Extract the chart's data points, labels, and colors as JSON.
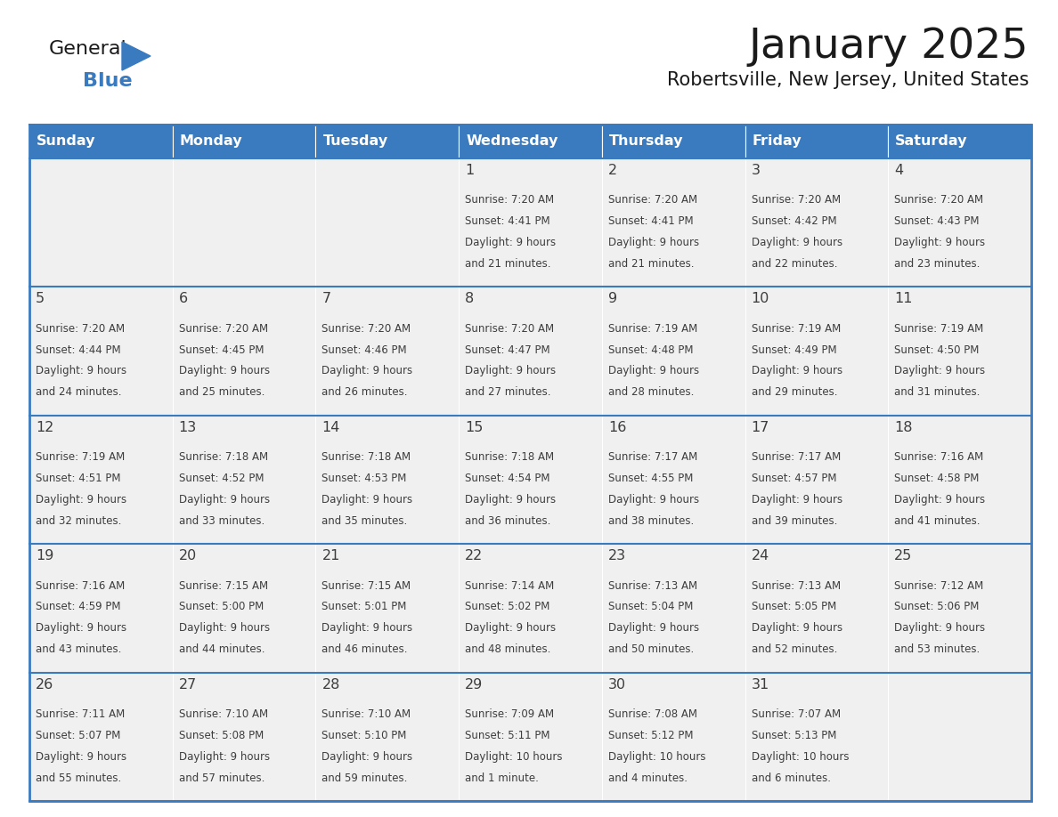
{
  "title": "January 2025",
  "subtitle": "Robertsville, New Jersey, United States",
  "header_bg": "#3a7abf",
  "header_text_color": "#ffffff",
  "cell_bg": "#f0f0f0",
  "day_names": [
    "Sunday",
    "Monday",
    "Tuesday",
    "Wednesday",
    "Thursday",
    "Friday",
    "Saturday"
  ],
  "days": [
    {
      "day": 1,
      "col": 3,
      "row": 0,
      "sunrise": "7:20 AM",
      "sunset": "4:41 PM",
      "daylight_l1": "Daylight: 9 hours",
      "daylight_l2": "and 21 minutes."
    },
    {
      "day": 2,
      "col": 4,
      "row": 0,
      "sunrise": "7:20 AM",
      "sunset": "4:41 PM",
      "daylight_l1": "Daylight: 9 hours",
      "daylight_l2": "and 21 minutes."
    },
    {
      "day": 3,
      "col": 5,
      "row": 0,
      "sunrise": "7:20 AM",
      "sunset": "4:42 PM",
      "daylight_l1": "Daylight: 9 hours",
      "daylight_l2": "and 22 minutes."
    },
    {
      "day": 4,
      "col": 6,
      "row": 0,
      "sunrise": "7:20 AM",
      "sunset": "4:43 PM",
      "daylight_l1": "Daylight: 9 hours",
      "daylight_l2": "and 23 minutes."
    },
    {
      "day": 5,
      "col": 0,
      "row": 1,
      "sunrise": "7:20 AM",
      "sunset": "4:44 PM",
      "daylight_l1": "Daylight: 9 hours",
      "daylight_l2": "and 24 minutes."
    },
    {
      "day": 6,
      "col": 1,
      "row": 1,
      "sunrise": "7:20 AM",
      "sunset": "4:45 PM",
      "daylight_l1": "Daylight: 9 hours",
      "daylight_l2": "and 25 minutes."
    },
    {
      "day": 7,
      "col": 2,
      "row": 1,
      "sunrise": "7:20 AM",
      "sunset": "4:46 PM",
      "daylight_l1": "Daylight: 9 hours",
      "daylight_l2": "and 26 minutes."
    },
    {
      "day": 8,
      "col": 3,
      "row": 1,
      "sunrise": "7:20 AM",
      "sunset": "4:47 PM",
      "daylight_l1": "Daylight: 9 hours",
      "daylight_l2": "and 27 minutes."
    },
    {
      "day": 9,
      "col": 4,
      "row": 1,
      "sunrise": "7:19 AM",
      "sunset": "4:48 PM",
      "daylight_l1": "Daylight: 9 hours",
      "daylight_l2": "and 28 minutes."
    },
    {
      "day": 10,
      "col": 5,
      "row": 1,
      "sunrise": "7:19 AM",
      "sunset": "4:49 PM",
      "daylight_l1": "Daylight: 9 hours",
      "daylight_l2": "and 29 minutes."
    },
    {
      "day": 11,
      "col": 6,
      "row": 1,
      "sunrise": "7:19 AM",
      "sunset": "4:50 PM",
      "daylight_l1": "Daylight: 9 hours",
      "daylight_l2": "and 31 minutes."
    },
    {
      "day": 12,
      "col": 0,
      "row": 2,
      "sunrise": "7:19 AM",
      "sunset": "4:51 PM",
      "daylight_l1": "Daylight: 9 hours",
      "daylight_l2": "and 32 minutes."
    },
    {
      "day": 13,
      "col": 1,
      "row": 2,
      "sunrise": "7:18 AM",
      "sunset": "4:52 PM",
      "daylight_l1": "Daylight: 9 hours",
      "daylight_l2": "and 33 minutes."
    },
    {
      "day": 14,
      "col": 2,
      "row": 2,
      "sunrise": "7:18 AM",
      "sunset": "4:53 PM",
      "daylight_l1": "Daylight: 9 hours",
      "daylight_l2": "and 35 minutes."
    },
    {
      "day": 15,
      "col": 3,
      "row": 2,
      "sunrise": "7:18 AM",
      "sunset": "4:54 PM",
      "daylight_l1": "Daylight: 9 hours",
      "daylight_l2": "and 36 minutes."
    },
    {
      "day": 16,
      "col": 4,
      "row": 2,
      "sunrise": "7:17 AM",
      "sunset": "4:55 PM",
      "daylight_l1": "Daylight: 9 hours",
      "daylight_l2": "and 38 minutes."
    },
    {
      "day": 17,
      "col": 5,
      "row": 2,
      "sunrise": "7:17 AM",
      "sunset": "4:57 PM",
      "daylight_l1": "Daylight: 9 hours",
      "daylight_l2": "and 39 minutes."
    },
    {
      "day": 18,
      "col": 6,
      "row": 2,
      "sunrise": "7:16 AM",
      "sunset": "4:58 PM",
      "daylight_l1": "Daylight: 9 hours",
      "daylight_l2": "and 41 minutes."
    },
    {
      "day": 19,
      "col": 0,
      "row": 3,
      "sunrise": "7:16 AM",
      "sunset": "4:59 PM",
      "daylight_l1": "Daylight: 9 hours",
      "daylight_l2": "and 43 minutes."
    },
    {
      "day": 20,
      "col": 1,
      "row": 3,
      "sunrise": "7:15 AM",
      "sunset": "5:00 PM",
      "daylight_l1": "Daylight: 9 hours",
      "daylight_l2": "and 44 minutes."
    },
    {
      "day": 21,
      "col": 2,
      "row": 3,
      "sunrise": "7:15 AM",
      "sunset": "5:01 PM",
      "daylight_l1": "Daylight: 9 hours",
      "daylight_l2": "and 46 minutes."
    },
    {
      "day": 22,
      "col": 3,
      "row": 3,
      "sunrise": "7:14 AM",
      "sunset": "5:02 PM",
      "daylight_l1": "Daylight: 9 hours",
      "daylight_l2": "and 48 minutes."
    },
    {
      "day": 23,
      "col": 4,
      "row": 3,
      "sunrise": "7:13 AM",
      "sunset": "5:04 PM",
      "daylight_l1": "Daylight: 9 hours",
      "daylight_l2": "and 50 minutes."
    },
    {
      "day": 24,
      "col": 5,
      "row": 3,
      "sunrise": "7:13 AM",
      "sunset": "5:05 PM",
      "daylight_l1": "Daylight: 9 hours",
      "daylight_l2": "and 52 minutes."
    },
    {
      "day": 25,
      "col": 6,
      "row": 3,
      "sunrise": "7:12 AM",
      "sunset": "5:06 PM",
      "daylight_l1": "Daylight: 9 hours",
      "daylight_l2": "and 53 minutes."
    },
    {
      "day": 26,
      "col": 0,
      "row": 4,
      "sunrise": "7:11 AM",
      "sunset": "5:07 PM",
      "daylight_l1": "Daylight: 9 hours",
      "daylight_l2": "and 55 minutes."
    },
    {
      "day": 27,
      "col": 1,
      "row": 4,
      "sunrise": "7:10 AM",
      "sunset": "5:08 PM",
      "daylight_l1": "Daylight: 9 hours",
      "daylight_l2": "and 57 minutes."
    },
    {
      "day": 28,
      "col": 2,
      "row": 4,
      "sunrise": "7:10 AM",
      "sunset": "5:10 PM",
      "daylight_l1": "Daylight: 9 hours",
      "daylight_l2": "and 59 minutes."
    },
    {
      "day": 29,
      "col": 3,
      "row": 4,
      "sunrise": "7:09 AM",
      "sunset": "5:11 PM",
      "daylight_l1": "Daylight: 10 hours",
      "daylight_l2": "and 1 minute."
    },
    {
      "day": 30,
      "col": 4,
      "row": 4,
      "sunrise": "7:08 AM",
      "sunset": "5:12 PM",
      "daylight_l1": "Daylight: 10 hours",
      "daylight_l2": "and 4 minutes."
    },
    {
      "day": 31,
      "col": 5,
      "row": 4,
      "sunrise": "7:07 AM",
      "sunset": "5:13 PM",
      "daylight_l1": "Daylight: 10 hours",
      "daylight_l2": "and 6 minutes."
    }
  ],
  "num_rows": 5,
  "num_cols": 7,
  "header_bg_color": "#3a7abf",
  "border_color": "#3a7abf",
  "text_color": "#3d3d3d",
  "divider_color": "#3a7abf",
  "logo_color1": "#1a1a1a",
  "logo_color2": "#3a7abf",
  "logo_triangle_color": "#3a7abf"
}
